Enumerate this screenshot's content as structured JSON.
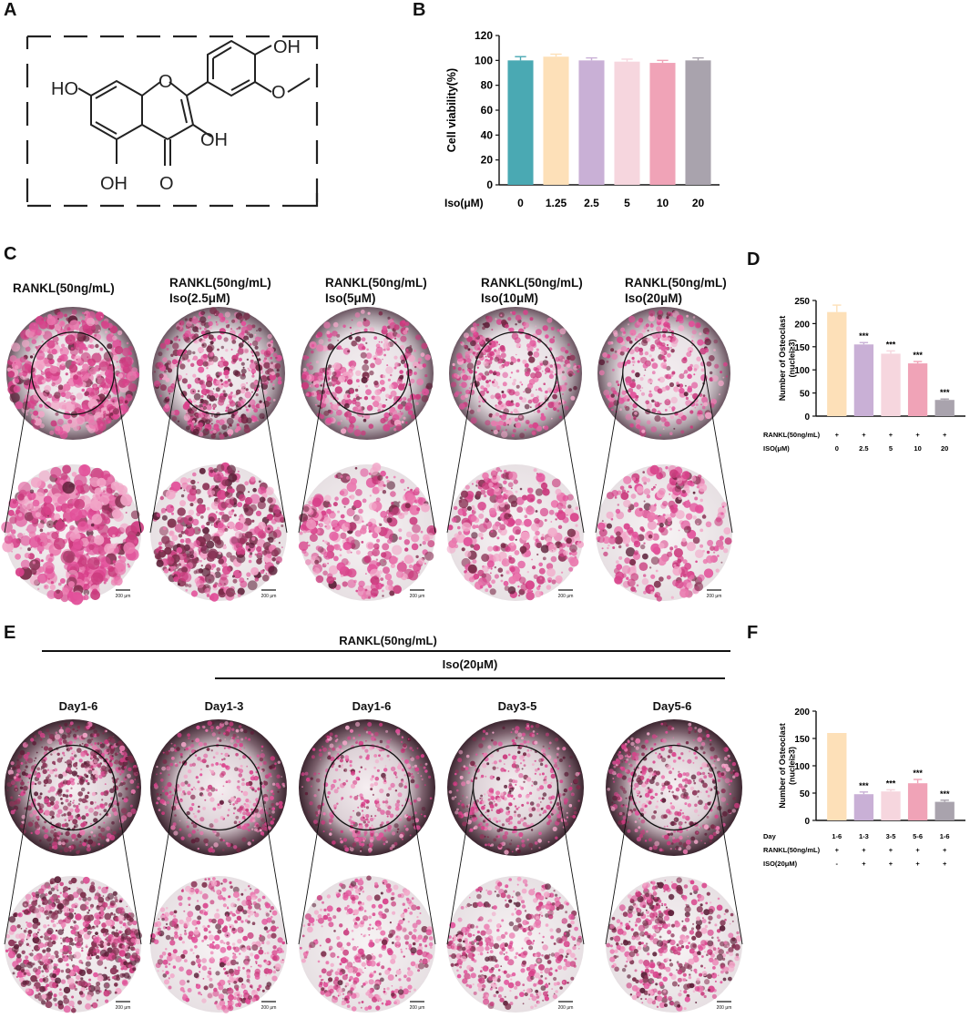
{
  "panel_labels": {
    "A": "A",
    "B": "B",
    "C": "C",
    "D": "D",
    "E": "E",
    "F": "F"
  },
  "structure": {
    "atoms": {
      "oh_top": "OH",
      "ho_left": "HO",
      "oh_right": "OH",
      "oh_bottom": "OH",
      "ring_o": "O",
      "carbonyl_o": "O"
    }
  },
  "panel_c": {
    "conditions": [
      {
        "line1": "RANKL(50ng/mL)",
        "line2": ""
      },
      {
        "line1": "RANKL(50ng/mL)",
        "line2": "Iso(2.5μM)"
      },
      {
        "line1": "RANKL(50ng/mL)",
        "line2": "Iso(5μM)"
      },
      {
        "line1": "RANKL(50ng/mL)",
        "line2": "Iso(10μM)"
      },
      {
        "line1": "RANKL(50ng/mL)",
        "line2": "Iso(20μM)"
      }
    ],
    "scale_bar": "200 μm",
    "well_tint": "#d8418a"
  },
  "panel_e": {
    "header_rankl": "RANKL(50ng/mL)",
    "header_iso": "Iso(20μM)",
    "days": [
      "Day1-6",
      "Day1-3",
      "Day1-6",
      "Day3-5",
      "Day5-6"
    ],
    "scale_bar": "200 μm"
  },
  "chart_data": [
    {
      "panel": "B",
      "type": "bar",
      "ylabel": "Cell viability(%)",
      "row_label": "Iso(μM)",
      "categories": [
        "0",
        "1.25",
        "2.5",
        "5",
        "10",
        "20"
      ],
      "values": [
        100,
        103,
        100,
        99,
        98,
        100
      ],
      "errors": [
        3,
        2,
        2,
        2,
        2,
        2
      ],
      "ylim": [
        0,
        120
      ],
      "yticks": [
        "0",
        "20",
        "40",
        "60",
        "80",
        "100",
        "120"
      ],
      "colors": [
        "#4aa9b3",
        "#fde0b8",
        "#c9b0d6",
        "#f6d6de",
        "#f0a3b7",
        "#a9a3ad"
      ]
    },
    {
      "panel": "D",
      "type": "bar",
      "ylabel": "Number of Osteoclast\n(nuclei≥3)",
      "categories": [
        "0",
        "2.5",
        "5",
        "10",
        "20"
      ],
      "values": [
        225,
        155,
        135,
        114,
        35
      ],
      "errors": [
        15,
        4,
        6,
        4,
        2
      ],
      "significance": [
        "",
        "***",
        "***",
        "***",
        "***"
      ],
      "ylim": [
        0,
        250
      ],
      "yticks": [
        "0",
        "50",
        "100",
        "150",
        "200",
        "250"
      ],
      "rows": [
        {
          "label": "RANKL(50ng/mL)",
          "values": [
            "+",
            "+",
            "+",
            "+",
            "+"
          ]
        },
        {
          "label": "ISO(μM)",
          "values": [
            "0",
            "2.5",
            "5",
            "10",
            "20"
          ]
        }
      ],
      "colors": [
        "#fde0b8",
        "#c9b0d6",
        "#f6d6de",
        "#f0a3b7",
        "#a9a3ad"
      ]
    },
    {
      "panel": "F",
      "type": "bar",
      "ylabel": "Number of Osteoclast\n(nuclei≥3)",
      "categories": [
        "1-6",
        "1-3",
        "3-5",
        "5-6",
        "1-6"
      ],
      "values": [
        160,
        48,
        53,
        68,
        34
      ],
      "errors": [
        0,
        4,
        3,
        7,
        3
      ],
      "significance": [
        "",
        "***",
        "***",
        "***",
        "***"
      ],
      "ylim": [
        0,
        200
      ],
      "yticks": [
        "0",
        "50",
        "100",
        "150",
        "200"
      ],
      "rows": [
        {
          "label": "Day",
          "values": [
            "1-6",
            "1-3",
            "3-5",
            "5-6",
            "1-6"
          ]
        },
        {
          "label": "RANKL(50ng/mL)",
          "values": [
            "+",
            "+",
            "+",
            "+",
            "+"
          ]
        },
        {
          "label": "ISO(20μM)",
          "values": [
            "-",
            "+",
            "+",
            "+",
            "+"
          ]
        }
      ],
      "colors": [
        "#fde0b8",
        "#c9b0d6",
        "#f6d6de",
        "#f0a3b7",
        "#a9a3ad"
      ]
    }
  ]
}
